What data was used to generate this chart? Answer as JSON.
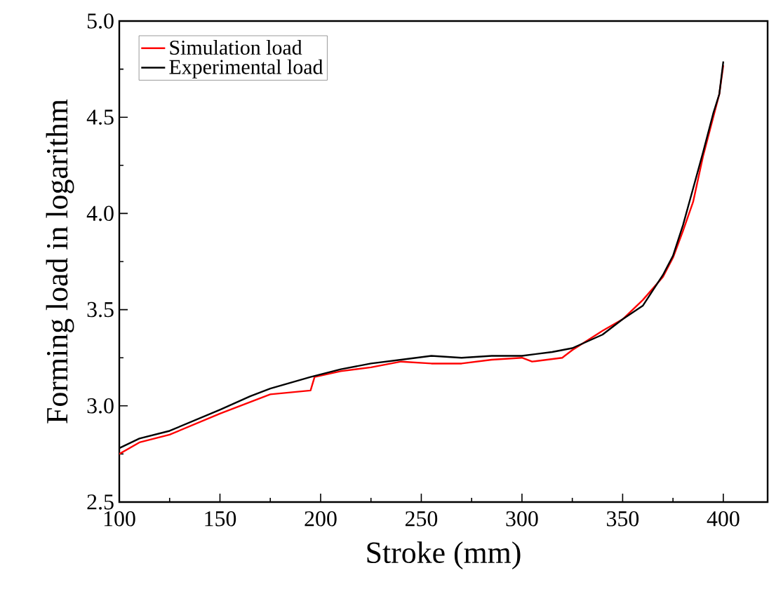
{
  "chart_data": {
    "type": "line",
    "xlabel": "Stroke (mm)",
    "ylabel": "Forming load in logarithm",
    "xlim": [
      100,
      422
    ],
    "ylim": [
      2.5,
      5.0
    ],
    "xticks": [
      100,
      150,
      200,
      250,
      300,
      350,
      400
    ],
    "yticks": [
      2.5,
      {
        "value": 3,
        "label": "3.0"
      },
      3.5,
      {
        "value": 4,
        "label": "4.0"
      },
      4.5,
      {
        "value": 5,
        "label": "5.0"
      }
    ],
    "legend": "top left",
    "grid": false,
    "marker": "none",
    "line_style": "solid",
    "x": [
      100,
      110,
      125,
      150,
      175,
      185,
      195,
      197,
      210,
      225,
      240,
      255,
      270,
      285,
      300,
      305,
      320,
      325,
      340,
      350,
      360,
      370,
      375,
      380,
      385,
      390,
      395,
      398,
      400
    ],
    "series": [
      {
        "name": "Simulation load",
        "color": "#ff0000",
        "values": [
          2.75,
          2.81,
          2.85,
          2.96,
          3.06,
          3.07,
          3.08,
          3.15,
          3.18,
          3.2,
          3.23,
          3.22,
          3.22,
          3.24,
          3.25,
          3.23,
          3.25,
          3.29,
          3.39,
          3.45,
          3.55,
          3.67,
          3.77,
          3.91,
          4.06,
          4.3,
          4.5,
          4.62,
          4.77
        ]
      },
      {
        "name": "Experimental load",
        "color": "#000000",
        "x": [
          100,
          110,
          125,
          150,
          165,
          175,
          185,
          195,
          210,
          225,
          240,
          255,
          270,
          285,
          300,
          315,
          325,
          340,
          350,
          360,
          370,
          375,
          380,
          385,
          390,
          395,
          398,
          400
        ],
        "values": [
          2.78,
          2.83,
          2.87,
          2.98,
          3.05,
          3.09,
          3.12,
          3.15,
          3.19,
          3.22,
          3.24,
          3.26,
          3.25,
          3.26,
          3.26,
          3.28,
          3.3,
          3.37,
          3.45,
          3.52,
          3.68,
          3.78,
          3.94,
          4.13,
          4.32,
          4.52,
          4.62,
          4.79
        ]
      }
    ]
  }
}
